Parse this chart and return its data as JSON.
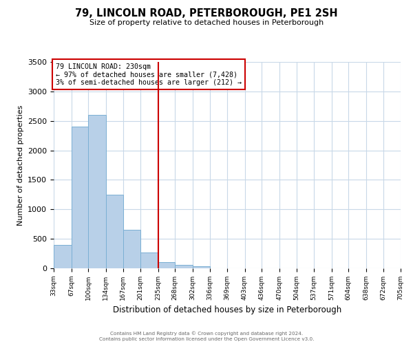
{
  "title": "79, LINCOLN ROAD, PETERBOROUGH, PE1 2SH",
  "subtitle": "Size of property relative to detached houses in Peterborough",
  "xlabel": "Distribution of detached houses by size in Peterborough",
  "ylabel": "Number of detached properties",
  "bin_edges": [
    33,
    67,
    100,
    134,
    167,
    201,
    235,
    268,
    302,
    336,
    369,
    403,
    436,
    470,
    504,
    537,
    571,
    604,
    638,
    672,
    705
  ],
  "bin_labels": [
    "33sqm",
    "67sqm",
    "100sqm",
    "134sqm",
    "167sqm",
    "201sqm",
    "235sqm",
    "268sqm",
    "302sqm",
    "336sqm",
    "369sqm",
    "403sqm",
    "436sqm",
    "470sqm",
    "504sqm",
    "537sqm",
    "571sqm",
    "604sqm",
    "638sqm",
    "672sqm",
    "705sqm"
  ],
  "counts": [
    400,
    2400,
    2600,
    1250,
    650,
    270,
    110,
    60,
    30,
    0,
    0,
    0,
    0,
    0,
    0,
    0,
    0,
    0,
    0,
    0
  ],
  "bar_color": "#b8d0e8",
  "bar_edge_color": "#7bafd4",
  "marker_value": 235,
  "marker_color": "#cc0000",
  "ylim": [
    0,
    3500
  ],
  "yticks": [
    0,
    500,
    1000,
    1500,
    2000,
    2500,
    3000,
    3500
  ],
  "annotation_title": "79 LINCOLN ROAD: 230sqm",
  "annotation_line1": "← 97% of detached houses are smaller (7,428)",
  "annotation_line2": "3% of semi-detached houses are larger (212) →",
  "footer1": "Contains HM Land Registry data © Crown copyright and database right 2024.",
  "footer2": "Contains public sector information licensed under the Open Government Licence v3.0.",
  "background_color": "#ffffff",
  "grid_color": "#c8d8e8"
}
